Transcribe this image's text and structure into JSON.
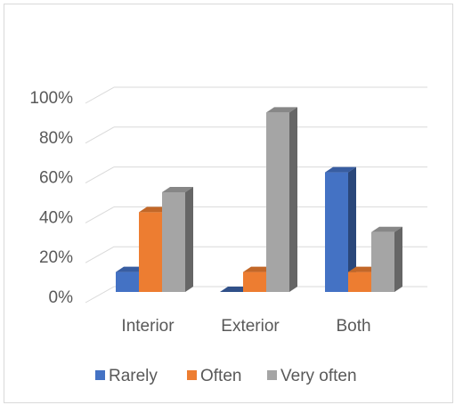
{
  "chart_data": {
    "type": "bar",
    "style": "3d-clustered-column",
    "categories": [
      "Interior",
      "Exterior",
      "Both"
    ],
    "series": [
      {
        "name": "Rarely",
        "values": [
          10,
          0,
          60
        ],
        "color": "#4472c4"
      },
      {
        "name": "Often",
        "values": [
          40,
          10,
          10
        ],
        "color": "#ed7d31"
      },
      {
        "name": "Very often",
        "values": [
          50,
          90,
          30
        ],
        "color": "#a5a5a5"
      }
    ],
    "y_ticks": [
      "0%",
      "20%",
      "40%",
      "60%",
      "80%",
      "100%"
    ],
    "ylim": [
      0,
      100
    ],
    "grid": true,
    "legend_position": "bottom"
  }
}
